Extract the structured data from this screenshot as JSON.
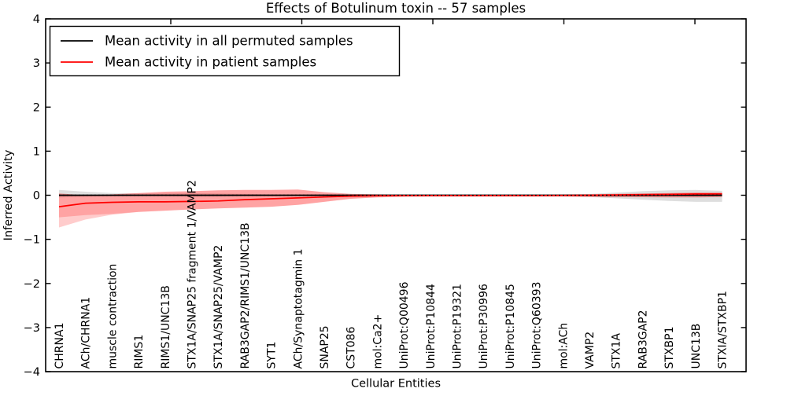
{
  "title": "Effects of Botulinum toxin -- 57 samples",
  "legend": {
    "items": [
      {
        "label": "Mean activity in all permuted samples",
        "color": "#000000"
      },
      {
        "label": "Mean activity in patient samples",
        "color": "#ff0000"
      }
    ]
  },
  "chart_data": {
    "type": "line",
    "title": "Effects of Botulinum toxin -- 57 samples",
    "xlabel": "Cellular Entities",
    "ylabel": "Inferred Activity",
    "ylim": [
      -4,
      4
    ],
    "yticks": [
      4,
      3,
      2,
      1,
      0,
      -1,
      -2,
      -3,
      -4
    ],
    "grid": false,
    "legend_position": "upper left",
    "zero_reference_line": {
      "y": 0,
      "style": "dotted",
      "color": "#000000"
    },
    "categories": [
      "CHRNA1",
      "ACh/CHRNA1",
      "muscle contraction",
      "RIMS1",
      "RIMS1/UNC13B",
      "STX1A/SNAP25 fragment 1/VAMP2",
      "STX1A/SNAP25/VAMP2",
      "RAB3GAP2/RIMS1/UNC13B",
      "SYT1",
      "ACh/Synaptotagmin 1",
      "SNAP25",
      "CST086",
      "mol:Ca2+",
      "UniProt:Q00496",
      "UniProt:P10844",
      "UniProt:P19321",
      "UniProt:P30996",
      "UniProt:P10845",
      "UniProt:Q60393",
      "mol:ACh",
      "VAMP2",
      "STX1A",
      "RAB3GAP2",
      "STXBP1",
      "UNC13B",
      "STXIA/STXBP1"
    ],
    "series": [
      {
        "name": "Mean activity in all permuted samples",
        "color": "#000000",
        "style": "solid",
        "values": [
          0,
          0,
          0,
          0,
          0,
          0,
          0,
          0,
          0,
          0,
          0,
          0,
          0,
          0,
          0,
          0,
          0,
          0,
          0,
          0,
          0,
          0,
          0,
          0,
          0,
          0
        ],
        "band_upper": [
          0.12,
          0.08,
          0.05,
          0.04,
          0.04,
          0.05,
          0.04,
          0.03,
          0.02,
          0.02,
          0.02,
          0.015,
          0.015,
          0.015,
          0.015,
          0.015,
          0.015,
          0.015,
          0.015,
          0.02,
          0.03,
          0.06,
          0.09,
          0.11,
          0.12,
          0.1
        ],
        "band_lower": [
          -0.05,
          -0.03,
          -0.02,
          -0.02,
          -0.02,
          -0.03,
          -0.03,
          -0.02,
          -0.02,
          -0.015,
          -0.015,
          -0.015,
          -0.015,
          -0.015,
          -0.015,
          -0.015,
          -0.015,
          -0.015,
          -0.015,
          -0.02,
          -0.04,
          -0.07,
          -0.1,
          -0.13,
          -0.15,
          -0.15
        ],
        "band_color": "rgba(0,0,0,0.13)"
      },
      {
        "name": "Mean activity in patient samples",
        "color": "#ff0000",
        "style": "solid",
        "values": [
          -0.26,
          -0.18,
          -0.16,
          -0.15,
          -0.15,
          -0.14,
          -0.13,
          -0.1,
          -0.08,
          -0.06,
          -0.04,
          -0.02,
          -0.01,
          -0.006,
          -0.005,
          -0.005,
          -0.005,
          -0.005,
          -0.005,
          -0.004,
          0.0,
          0.008,
          0.014,
          0.02,
          0.028,
          0.03
        ],
        "band_upper": [
          0.04,
          0.0,
          0.02,
          0.05,
          0.08,
          0.09,
          0.11,
          0.12,
          0.12,
          0.13,
          0.07,
          0.03,
          0.02,
          0.015,
          0.012,
          0.012,
          0.012,
          0.012,
          0.012,
          0.012,
          0.02,
          0.03,
          0.04,
          0.05,
          0.06,
          0.06
        ],
        "band_lower": [
          -0.5,
          -0.45,
          -0.42,
          -0.38,
          -0.35,
          -0.32,
          -0.3,
          -0.28,
          -0.26,
          -0.22,
          -0.15,
          -0.08,
          -0.05,
          -0.035,
          -0.03,
          -0.03,
          -0.03,
          -0.03,
          -0.03,
          -0.03,
          -0.035,
          -0.04,
          -0.045,
          -0.05,
          -0.05,
          -0.04
        ],
        "band_outer_lower": [
          -0.73,
          -0.55,
          -0.44,
          -0.38,
          -0.35,
          -0.32,
          -0.3,
          -0.28,
          -0.26,
          -0.22,
          -0.15,
          -0.08,
          -0.05,
          -0.035,
          -0.03,
          -0.03,
          -0.03,
          -0.03,
          -0.03,
          -0.03,
          -0.035,
          -0.04,
          -0.045,
          -0.05,
          -0.05,
          -0.04
        ],
        "band_color": "rgba(255,0,0,0.20)"
      }
    ]
  }
}
